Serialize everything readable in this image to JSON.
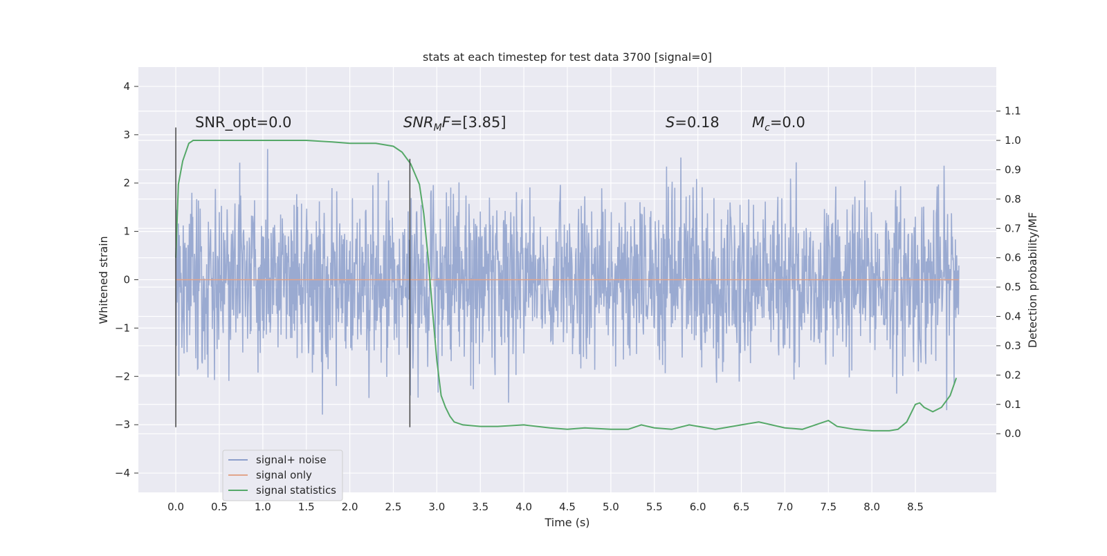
{
  "chart_data": {
    "type": "line",
    "title": "stats at each timestep for test data 3700 [signal=0]",
    "xlabel": "Time (s)",
    "ylabel": "Whitened strain",
    "y2label": "Detection probability/MF",
    "xlim": [
      -0.43,
      9.43
    ],
    "ylim": [
      -4.4,
      4.4
    ],
    "y2lim": [
      -0.2,
      1.25
    ],
    "xticks": [
      "0.0",
      "0.5",
      "1.0",
      "1.5",
      "2.0",
      "2.5",
      "3.0",
      "3.5",
      "4.0",
      "4.5",
      "5.0",
      "5.5",
      "6.0",
      "6.5",
      "7.0",
      "7.5",
      "8.0",
      "8.5"
    ],
    "yticks": [
      "4",
      "3",
      "2",
      "1",
      "0",
      "−1",
      "−2",
      "−3",
      "−4"
    ],
    "y2ticks": [
      "1.1",
      "1.0",
      "0.9",
      "0.8",
      "0.7",
      "0.6",
      "0.5",
      "0.4",
      "0.3",
      "0.2",
      "0.1",
      "0.0"
    ],
    "grid": true,
    "legend_position": "lower-left",
    "series": [
      {
        "name": "signal+ noise",
        "color": "#8c9fcb",
        "axis": "left",
        "description": "noisy whitened strain, roughly uniform band between about -1.7 and 1.7 with spikes to about ±3.5, over 0 to 9 s"
      },
      {
        "name": "signal only",
        "color": "#e1a48a",
        "axis": "left",
        "x": [
          0.0,
          9.0
        ],
        "values": [
          0.0,
          0.0
        ]
      },
      {
        "name": "signal statistics",
        "color": "#55a868",
        "axis": "right",
        "x": [
          0.0,
          0.03,
          0.08,
          0.15,
          0.2,
          0.3,
          0.5,
          1.0,
          1.5,
          1.8,
          2.0,
          2.3,
          2.5,
          2.6,
          2.7,
          2.8,
          2.85,
          2.9,
          2.95,
          3.0,
          3.05,
          3.1,
          3.15,
          3.2,
          3.3,
          3.5,
          3.7,
          4.0,
          4.3,
          4.5,
          4.7,
          5.0,
          5.2,
          5.35,
          5.5,
          5.7,
          5.9,
          6.2,
          6.5,
          6.7,
          7.0,
          7.2,
          7.4,
          7.5,
          7.6,
          7.8,
          8.0,
          8.2,
          8.3,
          8.4,
          8.5,
          8.55,
          8.6,
          8.7,
          8.8,
          8.9,
          8.97
        ],
        "values": [
          0.6,
          0.85,
          0.93,
          0.99,
          1.0,
          1.0,
          1.0,
          1.0,
          1.0,
          0.995,
          0.99,
          0.99,
          0.98,
          0.96,
          0.92,
          0.85,
          0.75,
          0.6,
          0.42,
          0.25,
          0.13,
          0.09,
          0.06,
          0.04,
          0.03,
          0.025,
          0.025,
          0.03,
          0.02,
          0.015,
          0.02,
          0.015,
          0.015,
          0.03,
          0.02,
          0.015,
          0.03,
          0.015,
          0.03,
          0.04,
          0.02,
          0.015,
          0.035,
          0.045,
          0.025,
          0.015,
          0.01,
          0.01,
          0.015,
          0.04,
          0.1,
          0.105,
          0.09,
          0.075,
          0.09,
          0.13,
          0.19
        ]
      },
      {
        "name": "",
        "color": "#444444",
        "axis": "left",
        "x": [
          0.0,
          0.0
        ],
        "values": [
          -3.05,
          3.15
        ]
      },
      {
        "name": "",
        "color": "#444444",
        "axis": "left",
        "x": [
          2.69,
          2.69
        ],
        "values": [
          -3.05,
          2.5
        ]
      }
    ],
    "annotations": [
      {
        "x": 0.2,
        "y": 3.2,
        "text": "SNR_opt=0.0"
      },
      {
        "x": 2.6,
        "y": 3.2,
        "text": "SNR_MF=[3.85]"
      },
      {
        "x": 5.6,
        "y": 3.2,
        "text": "S=0.18"
      },
      {
        "x": 6.6,
        "y": 3.2,
        "text": "M_c=0.0"
      }
    ]
  },
  "legend": {
    "items": [
      "signal+ noise",
      "signal only",
      "signal statistics"
    ]
  },
  "annotations": {
    "snr_opt_label": "SNR_opt=0.0",
    "snr_mf_base": "SNR",
    "snr_mf_sub": "M",
    "snr_mf_rest": "F",
    "snr_mf_value": "=[3.85]",
    "s_label": "S",
    "s_value": "=0.18",
    "mc_label": "M",
    "mc_sub": "c",
    "mc_value": "=0.0"
  },
  "colors": {
    "plot_bg": "#eaeaf2",
    "grid": "#ffffff",
    "noise": "#8c9fcb",
    "signal": "#e1a48a",
    "stats": "#55a868",
    "marker_lines": "#444444"
  }
}
